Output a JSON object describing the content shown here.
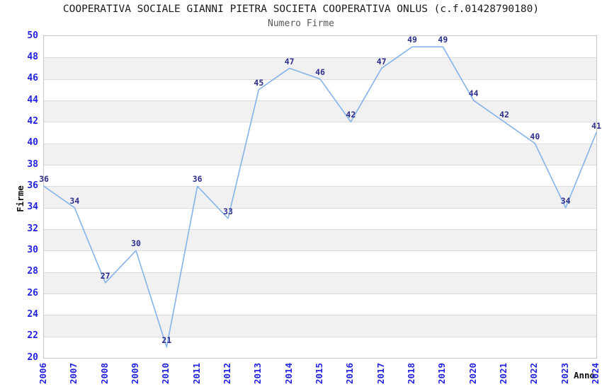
{
  "header": {
    "title": "COOPERATIVA SOCIALE GIANNI PIETRA SOCIETA COOPERATIVA ONLUS (c.f.01428790180)",
    "subtitle": "Numero Firme"
  },
  "chart_data": {
    "type": "line",
    "title": "COOPERATIVA SOCIALE GIANNI PIETRA SOCIETA COOPERATIVA ONLUS (c.f.01428790180)",
    "subtitle": "Numero Firme",
    "xlabel": "Anno",
    "ylabel": "Firme",
    "categories": [
      2006,
      2007,
      2008,
      2009,
      2010,
      2011,
      2012,
      2013,
      2014,
      2015,
      2016,
      2017,
      2018,
      2019,
      2020,
      2021,
      2022,
      2023,
      2024
    ],
    "values": [
      36,
      34,
      27,
      30,
      21,
      36,
      33,
      45,
      47,
      46,
      42,
      47,
      49,
      49,
      44,
      42,
      40,
      34,
      41
    ],
    "ylim": [
      20,
      50
    ],
    "ytick_step": 2,
    "grid": true,
    "legend": "none",
    "point_labels_visible": true,
    "colors": {
      "line": "#8ab6e8",
      "tick_label": "#2222dd",
      "point_label": "#2e2e8c",
      "band_gray": "#f1f1f1",
      "band_white": "#ffffff",
      "grid_line": "#dcdcdc",
      "plot_border": "#c6c6c6",
      "title": "#1a1a1a",
      "subtitle": "#595959",
      "axis_label": "#111111"
    }
  }
}
